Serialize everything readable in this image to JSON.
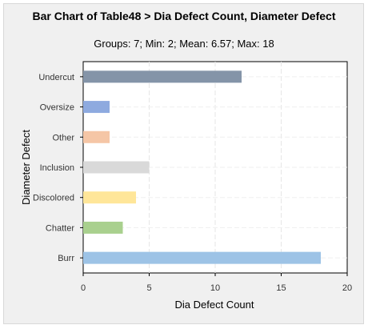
{
  "chart_data": {
    "type": "bar",
    "orientation": "horizontal",
    "title": "Bar Chart of Table48 > Dia Defect Count, Diameter Defect",
    "subtitle": "Groups: 7; Min: 2; Mean: 6.57; Max: 18",
    "xlabel": "Dia Defect Count",
    "ylabel": "Diameter Defect",
    "xlim": [
      0,
      20
    ],
    "xticks": [
      0,
      5,
      10,
      15,
      20
    ],
    "grid": true,
    "categories": [
      "Undercut",
      "Oversize",
      "Other",
      "Inclusion",
      "Discolored",
      "Chatter",
      "Burr"
    ],
    "values": [
      12,
      2,
      2,
      5,
      4,
      3,
      18
    ],
    "colors": [
      "#8494a8",
      "#8eaadf",
      "#f5c6a6",
      "#d9d9d9",
      "#ffe699",
      "#a9d08e",
      "#9dc3e6"
    ]
  }
}
